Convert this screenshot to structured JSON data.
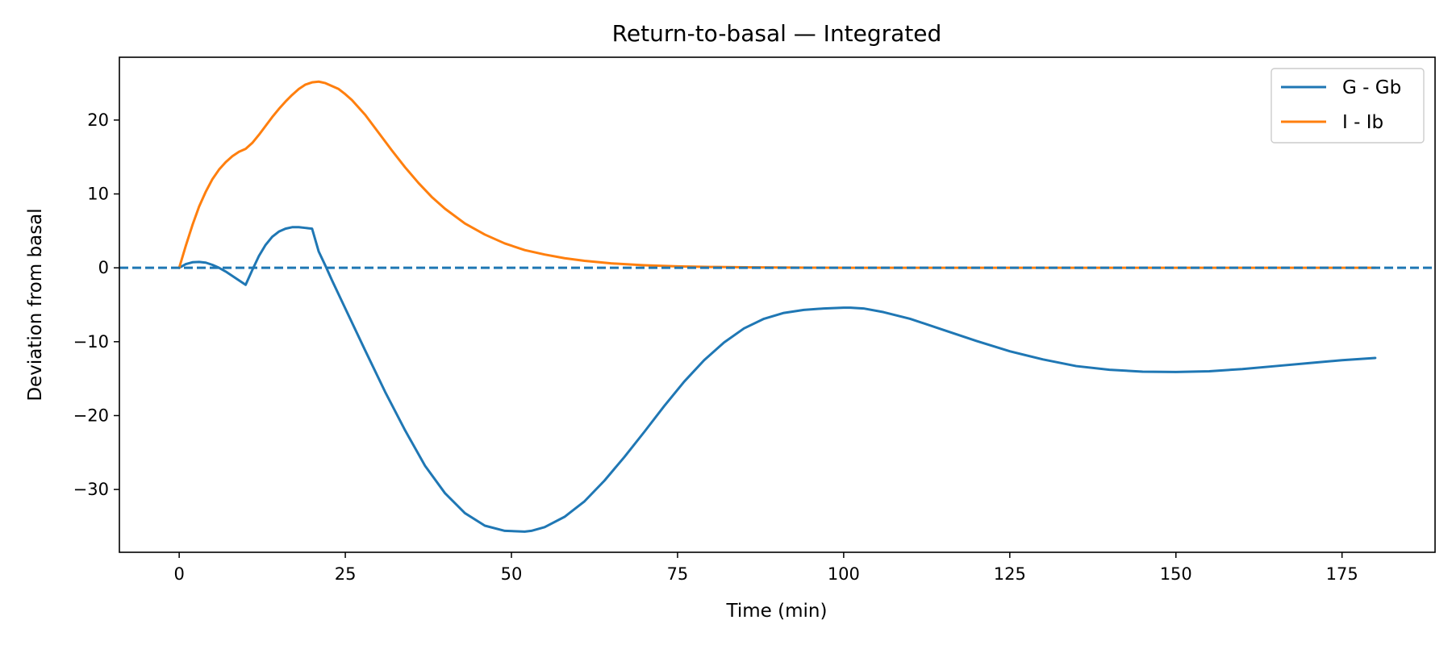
{
  "chart_data": {
    "type": "line",
    "title": "Return-to-basal — Integrated",
    "xlabel": "Time (min)",
    "ylabel": "Deviation from basal",
    "xlim": [
      -9,
      189
    ],
    "ylim": [
      -38.5,
      28.5
    ],
    "xticks": [
      0,
      25,
      50,
      75,
      100,
      125,
      150,
      175
    ],
    "yticks": [
      20,
      10,
      0,
      -10,
      -20,
      -30
    ],
    "xtick_labels": [
      "0",
      "25",
      "50",
      "75",
      "100",
      "125",
      "150",
      "175"
    ],
    "ytick_labels": [
      "20",
      "10",
      "0",
      "−10",
      "−20",
      "−30"
    ],
    "grid": false,
    "legend_position": "top-right",
    "reference_line": {
      "y": 0,
      "style": "dashed",
      "color": "#1f77b4"
    },
    "series": [
      {
        "name": "G - Gb",
        "color": "#1f77b4",
        "x": [
          0,
          1,
          2,
          3,
          4,
          5,
          6,
          7,
          8,
          9,
          10,
          11,
          12,
          13,
          14,
          15,
          16,
          17,
          18,
          19,
          20,
          21,
          22,
          23,
          25,
          28,
          31,
          34,
          37,
          40,
          43,
          46,
          49,
          52,
          53,
          55,
          58,
          61,
          64,
          67,
          70,
          73,
          76,
          79,
          82,
          85,
          88,
          91,
          94,
          97,
          100,
          101,
          103,
          106,
          110,
          115,
          120,
          125,
          130,
          135,
          140,
          145,
          150,
          155,
          160,
          165,
          170,
          175,
          180
        ],
        "y": [
          0,
          0.5,
          0.75,
          0.8,
          0.7,
          0.4,
          0,
          -0.5,
          -1.1,
          -1.7,
          -2.3,
          -0.3,
          1.6,
          3.1,
          4.2,
          4.9,
          5.3,
          5.5,
          5.5,
          5.4,
          5.3,
          2.2,
          0.3,
          -1.7,
          -5.5,
          -11.2,
          -16.8,
          -22,
          -26.8,
          -30.5,
          -33.2,
          -34.9,
          -35.6,
          -35.7,
          -35.6,
          -35.1,
          -33.7,
          -31.6,
          -28.8,
          -25.6,
          -22.2,
          -18.7,
          -15.4,
          -12.5,
          -10.1,
          -8.2,
          -6.9,
          -6.1,
          -5.7,
          -5.5,
          -5.4,
          -5.4,
          -5.5,
          -6,
          -6.9,
          -8.4,
          -9.9,
          -11.3,
          -12.4,
          -13.3,
          -13.8,
          -14.05,
          -14.1,
          -14,
          -13.7,
          -13.3,
          -12.9,
          -12.5,
          -12.2
        ]
      },
      {
        "name": "I - Ib",
        "color": "#ff7f0e",
        "x": [
          0,
          1,
          2,
          3,
          4,
          5,
          6,
          7,
          8,
          9,
          10,
          11,
          12,
          13,
          14,
          15,
          16,
          17,
          18,
          19,
          20,
          21,
          22,
          23,
          24,
          25,
          26,
          28,
          30,
          32,
          34,
          36,
          38,
          40,
          43,
          46,
          49,
          52,
          55,
          58,
          61,
          65,
          70,
          75,
          80,
          85,
          90,
          95,
          100,
          110,
          120,
          140,
          160,
          180
        ],
        "y": [
          0,
          3,
          5.8,
          8.3,
          10.3,
          12,
          13.3,
          14.3,
          15.1,
          15.7,
          16.1,
          16.9,
          18,
          19.2,
          20.4,
          21.5,
          22.5,
          23.4,
          24.2,
          24.8,
          25.1,
          25.2,
          25,
          24.6,
          24.2,
          23.5,
          22.7,
          20.7,
          18.3,
          15.9,
          13.6,
          11.5,
          9.6,
          8,
          6,
          4.5,
          3.3,
          2.4,
          1.8,
          1.3,
          0.95,
          0.6,
          0.35,
          0.2,
          0.12,
          0.07,
          0.04,
          0.02,
          0.01,
          0,
          0,
          0,
          0,
          0
        ]
      }
    ]
  }
}
